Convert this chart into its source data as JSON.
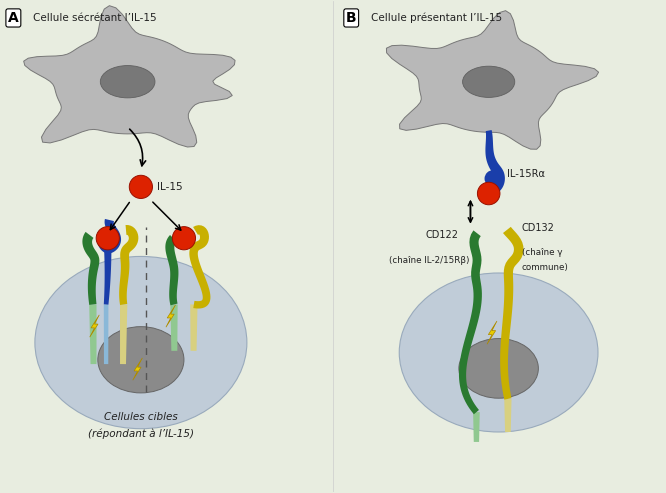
{
  "bg_color": "#e8ede0",
  "cell_body_color": "#b8b8b8",
  "cell_nucleus_color": "#787878",
  "il15_color": "#dd2200",
  "blue_color": "#1a3eaa",
  "green_color": "#2a7a30",
  "yellow_color": "#c8b000",
  "lightblue_color": "#8ab8d8",
  "lightgreen_color": "#90c890",
  "lightyellow_color": "#d8d080",
  "target_outer_color": "#c0ccd8",
  "target_nucleus_color": "#8a8a8a",
  "dashed_color": "#555555",
  "text_color": "#222222",
  "label_A": "A",
  "label_B": "B",
  "title_A": "Cellule sécrétant l’IL-15",
  "title_B": "Cellule présentant l’IL-15",
  "il15_label": "IL-15",
  "il15ra_label": "IL-15Rα",
  "cd122_label": "CD122",
  "cd122_sub": "(chaîne IL-2/15Rβ)",
  "cd132_label": "CD132",
  "cd132_sub1": "(chaîne γ",
  "cd132_sub2": "commune)",
  "target_label": "Cellules cibles",
  "target_sub": "(répondant à l’IL-15)"
}
